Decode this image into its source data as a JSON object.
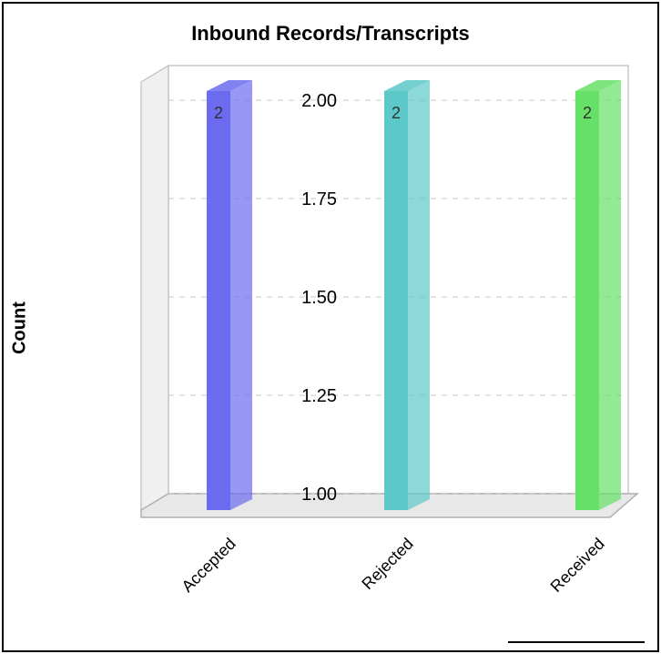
{
  "chart_data": {
    "type": "bar",
    "title": "Inbound Records/Transcripts",
    "xlabel": "",
    "ylabel": "Count",
    "categories": [
      "Accepted",
      "Rejected",
      "Received"
    ],
    "values": [
      2,
      2,
      2
    ],
    "data_labels": [
      "2",
      "2",
      "2"
    ],
    "colors": [
      "#6b6bf0",
      "#5cc8c8",
      "#66e066"
    ],
    "y_ticks": [
      "1.00",
      "1.25",
      "1.50",
      "1.75",
      "2.00"
    ],
    "ylim": [
      1.0,
      2.0
    ],
    "grid": true,
    "style": "3d"
  }
}
